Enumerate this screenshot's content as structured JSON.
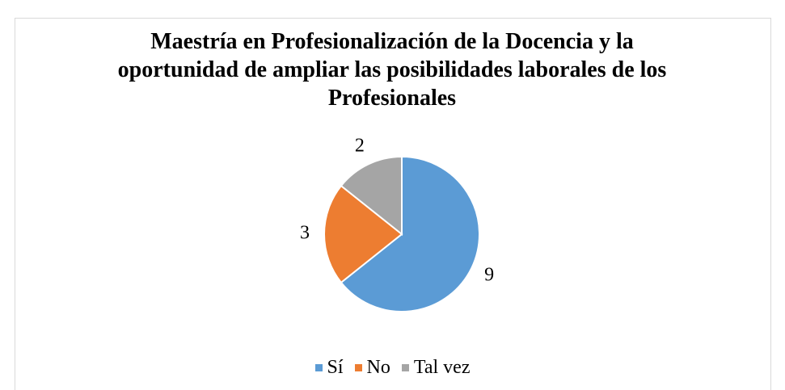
{
  "chart_data": {
    "type": "pie",
    "title": "Maestría en Profesionalización de la Docencia y la oportunidad de ampliar las posibilidades laborales de los Profesionales",
    "categories": [
      "Sí",
      "No",
      "Tal vez"
    ],
    "values": [
      9,
      3,
      2
    ],
    "colors": [
      "#5b9bd5",
      "#ed7d31",
      "#a5a5a5"
    ],
    "legend": "bottom"
  }
}
